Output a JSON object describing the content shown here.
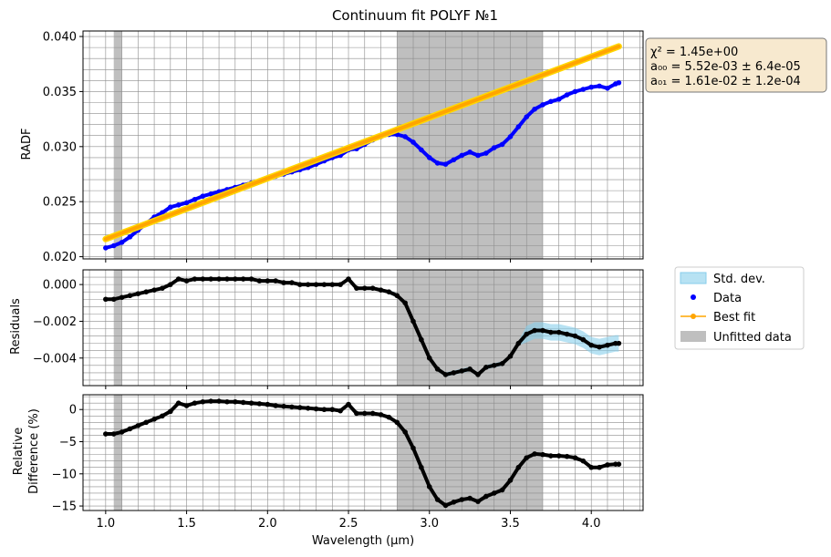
{
  "chart_data": {
    "title": "Continuum fit POLYF №1",
    "type": "line",
    "xlabel": "Wavelength (μm)",
    "xlim": [
      0.86,
      4.32
    ],
    "x_ticks": [
      1.0,
      1.5,
      2.0,
      2.5,
      3.0,
      3.5,
      4.0
    ],
    "x_tick_labels": [
      "1.0",
      "1.5",
      "2.0",
      "2.5",
      "3.0",
      "3.5",
      "4.0"
    ],
    "unfitted_regions": [
      [
        1.05,
        1.1
      ],
      [
        2.8,
        3.7
      ]
    ],
    "colors": {
      "data": "#0000ff",
      "best_fit": "#ffa500",
      "best_fit_band": "#ffd700",
      "residual_points": "#000000",
      "std_dev": "#87ceeb",
      "unfitted": "#bfbfbf",
      "grid": "#8c8c8c",
      "fit_box": "#f7e9cf"
    },
    "fit_box": {
      "line1": "χ² = 1.45e+00",
      "line2": "a₀₀ =  5.52e-03 ±  6.4e-05",
      "line3": "a₀₁ =  1.61e-02 ±  1.2e-04"
    },
    "legend": {
      "placement": "right of lower panels",
      "items": [
        "Std. dev.",
        "Data",
        "Best fit",
        "Unfitted data"
      ]
    },
    "panels": [
      {
        "id": "top",
        "ylabel": "RADF",
        "ylim": [
          0.0198,
          0.0405
        ],
        "y_ticks": [
          0.02,
          0.025,
          0.03,
          0.035,
          0.04
        ],
        "y_tick_labels": [
          "0.020",
          "0.025",
          "0.030",
          "0.035",
          "0.040"
        ],
        "series": [
          {
            "name": "Data",
            "kind": "points",
            "x": [
              1.0,
              1.05,
              1.1,
              1.15,
              1.2,
              1.25,
              1.3,
              1.35,
              1.4,
              1.45,
              1.5,
              1.55,
              1.6,
              1.65,
              1.7,
              1.75,
              1.8,
              1.85,
              1.9,
              1.95,
              2.0,
              2.05,
              2.1,
              2.15,
              2.2,
              2.25,
              2.3,
              2.35,
              2.4,
              2.45,
              2.5,
              2.55,
              2.6,
              2.65,
              2.7,
              2.75,
              2.8,
              2.85,
              2.9,
              2.95,
              3.0,
              3.05,
              3.1,
              3.15,
              3.2,
              3.25,
              3.3,
              3.35,
              3.4,
              3.45,
              3.5,
              3.55,
              3.6,
              3.65,
              3.7,
              3.75,
              3.8,
              3.85,
              3.9,
              3.95,
              4.0,
              4.05,
              4.1,
              4.15,
              4.17
            ],
            "y": [
              0.0208,
              0.021,
              0.0213,
              0.0218,
              0.0224,
              0.023,
              0.0236,
              0.024,
              0.0245,
              0.0247,
              0.0249,
              0.0252,
              0.0255,
              0.0257,
              0.0259,
              0.0261,
              0.0263,
              0.0265,
              0.0267,
              0.0269,
              0.0271,
              0.0273,
              0.0275,
              0.0277,
              0.0279,
              0.0281,
              0.0284,
              0.0287,
              0.029,
              0.0292,
              0.0297,
              0.0298,
              0.0302,
              0.0306,
              0.0309,
              0.0311,
              0.0311,
              0.0309,
              0.0304,
              0.0297,
              0.029,
              0.0285,
              0.0284,
              0.0288,
              0.0292,
              0.0295,
              0.0292,
              0.0294,
              0.0299,
              0.0302,
              0.0309,
              0.0318,
              0.0327,
              0.0334,
              0.0338,
              0.0341,
              0.0343,
              0.0347,
              0.035,
              0.0352,
              0.0354,
              0.0355,
              0.0353,
              0.0357,
              0.0358
            ]
          },
          {
            "name": "Best fit",
            "kind": "line",
            "x": [
              1.0,
              4.17
            ],
            "y": [
              0.0216,
              0.0391
            ]
          }
        ]
      },
      {
        "id": "middle",
        "ylabel": "Residuals",
        "ylim": [
          -0.0055,
          0.0008
        ],
        "y_ticks": [
          0.0,
          -0.002,
          -0.004
        ],
        "y_tick_labels": [
          "0.000",
          "−0.002",
          "−0.004"
        ],
        "series": [
          {
            "name": "Residuals",
            "kind": "points",
            "x": [
              1.0,
              1.05,
              1.1,
              1.15,
              1.2,
              1.25,
              1.3,
              1.35,
              1.4,
              1.45,
              1.5,
              1.55,
              1.6,
              1.65,
              1.7,
              1.75,
              1.8,
              1.85,
              1.9,
              1.95,
              2.0,
              2.05,
              2.1,
              2.15,
              2.2,
              2.25,
              2.3,
              2.35,
              2.4,
              2.45,
              2.5,
              2.55,
              2.6,
              2.65,
              2.7,
              2.75,
              2.8,
              2.85,
              2.9,
              2.95,
              3.0,
              3.05,
              3.1,
              3.15,
              3.2,
              3.25,
              3.3,
              3.35,
              3.4,
              3.45,
              3.5,
              3.55,
              3.6,
              3.65,
              3.7,
              3.75,
              3.8,
              3.85,
              3.9,
              3.95,
              4.0,
              4.05,
              4.1,
              4.15,
              4.17
            ],
            "y": [
              -0.0008,
              -0.0008,
              -0.0007,
              -0.0006,
              -0.0005,
              -0.0004,
              -0.0003,
              -0.0002,
              0.0,
              0.0003,
              0.0002,
              0.0003,
              0.0003,
              0.0003,
              0.0003,
              0.0003,
              0.0003,
              0.0003,
              0.0003,
              0.0002,
              0.0002,
              0.0002,
              0.0001,
              0.0001,
              0.0,
              0.0,
              0.0,
              0.0,
              0.0,
              0.0,
              0.0003,
              -0.0002,
              -0.0002,
              -0.0002,
              -0.0003,
              -0.0004,
              -0.0006,
              -0.001,
              -0.002,
              -0.003,
              -0.004,
              -0.0046,
              -0.0049,
              -0.0048,
              -0.0047,
              -0.0046,
              -0.0049,
              -0.0045,
              -0.0044,
              -0.0043,
              -0.0039,
              -0.0032,
              -0.0027,
              -0.0025,
              -0.0025,
              -0.0026,
              -0.0026,
              -0.0027,
              -0.0028,
              -0.003,
              -0.0033,
              -0.0034,
              -0.0033,
              -0.0032,
              -0.0032
            ]
          }
        ]
      },
      {
        "id": "bottom",
        "ylabel_line1": "Relative",
        "ylabel_line2": "Difference (%)",
        "ylim": [
          -15.7,
          2.3
        ],
        "y_ticks": [
          0,
          -5,
          -10,
          -15
        ],
        "y_tick_labels": [
          "0",
          "−5",
          "−10",
          "−15"
        ],
        "series": [
          {
            "name": "Relative difference",
            "kind": "points",
            "x": [
              1.0,
              1.05,
              1.1,
              1.15,
              1.2,
              1.25,
              1.3,
              1.35,
              1.4,
              1.45,
              1.5,
              1.55,
              1.6,
              1.65,
              1.7,
              1.75,
              1.8,
              1.85,
              1.9,
              1.95,
              2.0,
              2.05,
              2.1,
              2.15,
              2.2,
              2.25,
              2.3,
              2.35,
              2.4,
              2.45,
              2.5,
              2.55,
              2.6,
              2.65,
              2.7,
              2.75,
              2.8,
              2.85,
              2.9,
              2.95,
              3.0,
              3.05,
              3.1,
              3.15,
              3.2,
              3.25,
              3.3,
              3.35,
              3.4,
              3.45,
              3.5,
              3.55,
              3.6,
              3.65,
              3.7,
              3.75,
              3.8,
              3.85,
              3.9,
              3.95,
              4.0,
              4.05,
              4.1,
              4.15,
              4.17
            ],
            "y": [
              -3.8,
              -3.8,
              -3.5,
              -3.0,
              -2.5,
              -2.0,
              -1.5,
              -1.0,
              -0.3,
              1.0,
              0.6,
              1.0,
              1.2,
              1.3,
              1.3,
              1.2,
              1.2,
              1.1,
              1.0,
              0.9,
              0.8,
              0.6,
              0.5,
              0.4,
              0.3,
              0.2,
              0.1,
              0.0,
              0.0,
              -0.2,
              0.8,
              -0.6,
              -0.6,
              -0.6,
              -0.8,
              -1.2,
              -2.0,
              -3.5,
              -6.0,
              -9.0,
              -12.0,
              -14.0,
              -14.9,
              -14.4,
              -14.0,
              -13.8,
              -14.3,
              -13.5,
              -13.0,
              -12.5,
              -11.0,
              -9.0,
              -7.5,
              -6.9,
              -7.0,
              -7.2,
              -7.2,
              -7.3,
              -7.5,
              -8.0,
              -9.0,
              -9.0,
              -8.6,
              -8.5,
              -8.5
            ]
          }
        ]
      }
    ]
  }
}
